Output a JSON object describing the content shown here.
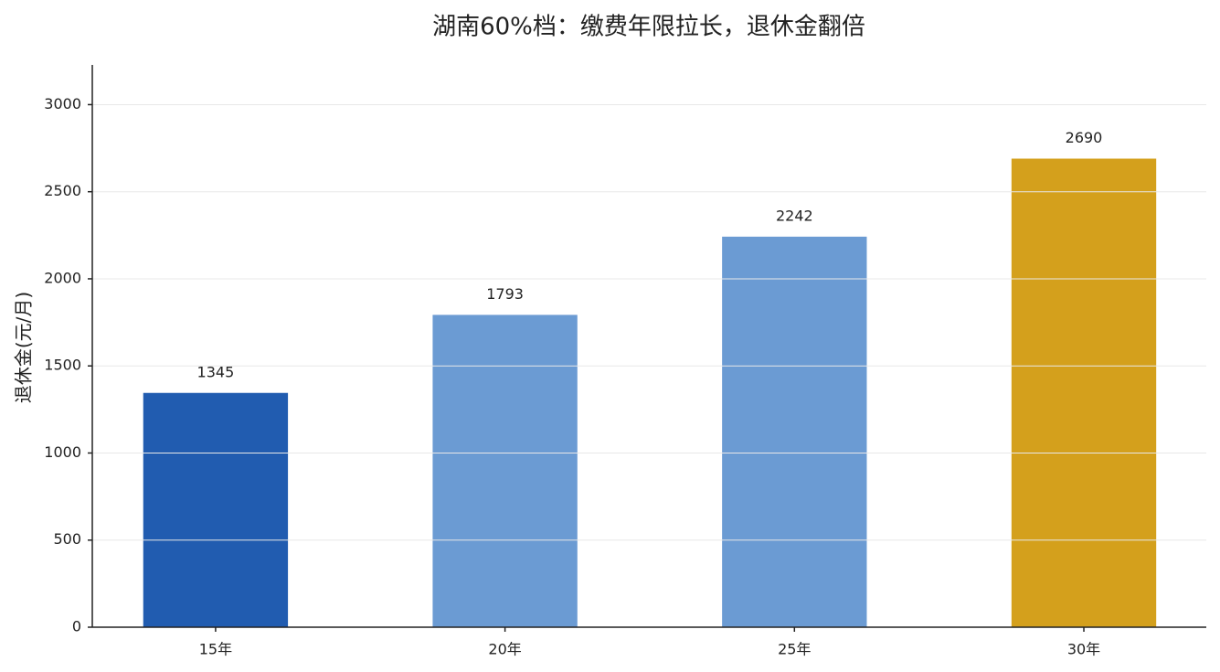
{
  "chart_data": {
    "type": "bar",
    "title": "湖南60%档：缴费年限拉长，退休金翻倍",
    "y_label": "退休金(元/月)",
    "categories": [
      "15年",
      "20年",
      "25年",
      "30年"
    ],
    "values": [
      1345,
      1793,
      2242,
      2690
    ],
    "colors": [
      "#215cb0",
      "#6b9bd3",
      "#6b9bd3",
      "#d4a01c"
    ],
    "ylim": [
      0,
      3228
    ],
    "yticks": [
      0,
      500,
      1000,
      1500,
      2000,
      2500,
      3000
    ],
    "grid": true
  }
}
